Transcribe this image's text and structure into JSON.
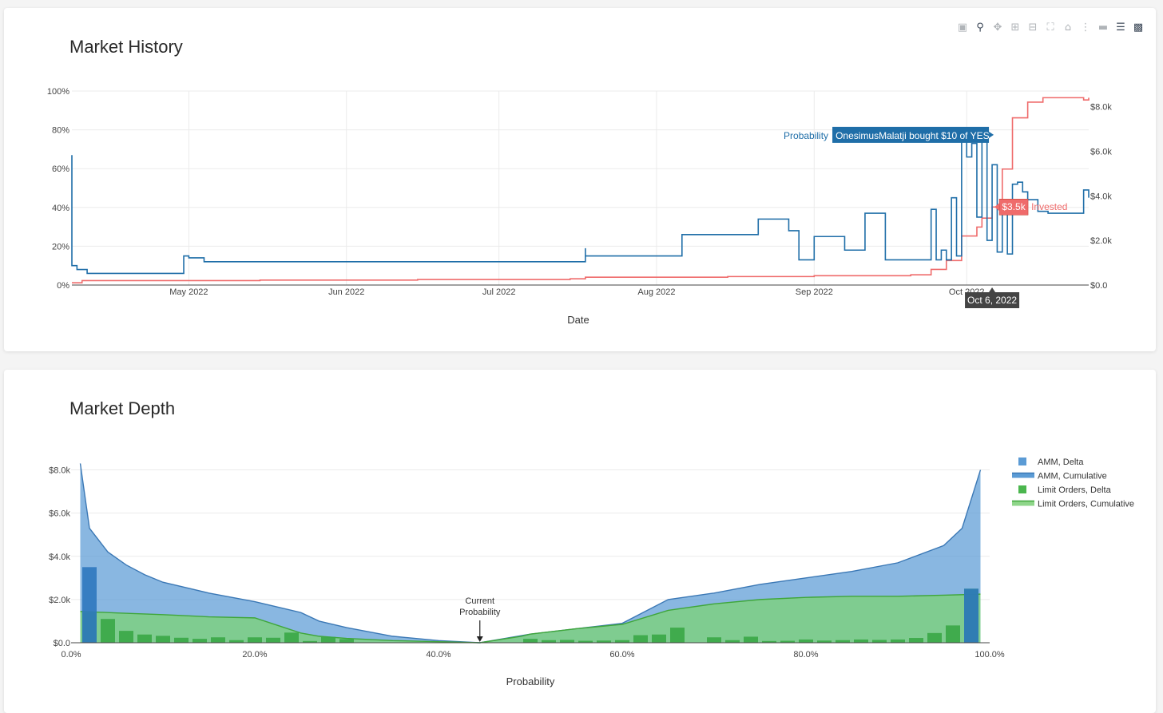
{
  "toolbar": {
    "icons": [
      "camera-icon",
      "zoom-icon",
      "pan-icon",
      "zoom-in-icon",
      "zoom-out-icon",
      "autoscale-icon",
      "reset-axes-icon",
      "spike-lines-icon",
      "hover-closest-icon",
      "hover-compare-icon",
      "plotly-logo-icon"
    ]
  },
  "history": {
    "title": "Market History",
    "xlabel": "Date",
    "tooltip_probability_label": "Probability",
    "tooltip_probability_text": "OnesimusMalatji bought $10 of YES",
    "tooltip_invested_value": "$3.5k",
    "tooltip_invested_label": "Invested",
    "tooltip_date": "Oct 6, 2022",
    "colors": {
      "probability": "#1f6ea8",
      "invested": "#ef6b6b"
    }
  },
  "depth": {
    "title": "Market Depth",
    "xlabel": "Probability",
    "annotation_line1": "Current",
    "annotation_line2": "Probability",
    "colors": {
      "amm": "#5b9bd5",
      "limit": "#3fb54a"
    }
  },
  "chart_data": [
    {
      "type": "line",
      "title": "Market History",
      "xlabel": "Date",
      "x_ticks": [
        "May 2022",
        "Jun 2022",
        "Jul 2022",
        "Aug 2022",
        "Sep 2022",
        "Oct 2022"
      ],
      "y_ticks_left": [
        "0%",
        "20%",
        "40%",
        "60%",
        "80%",
        "100%"
      ],
      "y_ticks_right": [
        "$0.0",
        "$2.0k",
        "$4.0k",
        "$6.0k",
        "$8.0k"
      ],
      "ylim_left": [
        0,
        100
      ],
      "ylim_right": [
        0,
        8700
      ],
      "series": [
        {
          "name": "Probability",
          "axis": "left",
          "x": [
            "2022-04-08",
            "2022-04-08",
            "2022-04-09",
            "2022-04-11",
            "2022-04-30",
            "2022-04-30",
            "2022-05-01",
            "2022-05-04",
            "2022-05-06",
            "2022-07-15",
            "2022-07-18",
            "2022-07-18",
            "2022-07-18",
            "2022-08-06",
            "2022-08-06",
            "2022-08-21",
            "2022-08-21",
            "2022-08-27",
            "2022-08-27",
            "2022-08-29",
            "2022-08-29",
            "2022-09-01",
            "2022-09-01",
            "2022-09-05",
            "2022-09-07",
            "2022-09-07",
            "2022-09-11",
            "2022-09-15",
            "2022-09-15",
            "2022-09-24",
            "2022-09-24",
            "2022-09-25",
            "2022-09-25",
            "2022-09-26",
            "2022-09-27",
            "2022-09-28",
            "2022-09-29",
            "2022-09-30",
            "2022-10-01",
            "2022-10-02",
            "2022-10-03",
            "2022-10-04",
            "2022-10-05",
            "2022-10-06",
            "2022-10-07",
            "2022-10-08",
            "2022-10-09",
            "2022-10-10",
            "2022-10-11",
            "2022-10-12",
            "2022-10-13",
            "2022-10-15",
            "2022-10-17",
            "2022-10-17",
            "2022-10-23",
            "2022-10-24",
            "2022-10-24",
            "2022-10-25"
          ],
          "y": [
            67,
            10,
            8,
            6,
            6,
            15,
            14,
            12,
            12,
            12,
            15,
            19,
            15,
            15,
            26,
            26,
            34,
            34,
            28,
            28,
            13,
            13,
            25,
            25,
            18,
            18,
            37,
            37,
            13,
            13,
            39,
            16,
            13,
            18,
            13,
            45,
            15,
            78,
            66,
            73,
            35,
            77,
            23,
            62,
            17,
            40,
            16,
            52,
            53,
            48,
            44,
            38,
            38,
            37,
            37,
            40,
            49,
            45
          ]
        },
        {
          "name": "Invested",
          "axis": "right",
          "x": [
            "2022-04-08",
            "2022-04-10",
            "2022-05-15",
            "2022-06-15",
            "2022-07-15",
            "2022-07-18",
            "2022-08-15",
            "2022-09-01",
            "2022-09-20",
            "2022-09-24",
            "2022-09-27",
            "2022-09-30",
            "2022-10-03",
            "2022-10-04",
            "2022-10-06",
            "2022-10-08",
            "2022-10-10",
            "2022-10-13",
            "2022-10-16",
            "2022-10-20",
            "2022-10-24",
            "2022-10-25"
          ],
          "y": [
            100,
            200,
            220,
            250,
            280,
            350,
            380,
            420,
            460,
            700,
            1100,
            2200,
            2600,
            3000,
            3500,
            5200,
            7500,
            8200,
            8400,
            8400,
            8300,
            8400
          ]
        }
      ]
    },
    {
      "type": "area",
      "title": "Market Depth",
      "xlabel": "Probability",
      "x_ticks": [
        "0.0%",
        "20.0%",
        "40.0%",
        "60.0%",
        "80.0%",
        "100.0%"
      ],
      "y_ticks": [
        "$0.0",
        "$2.0k",
        "$4.0k",
        "$6.0k",
        "$8.0k"
      ],
      "xlim": [
        0,
        100
      ],
      "ylim": [
        0,
        8500
      ],
      "legend_placement": "top-right",
      "legend": [
        "AMM, Delta",
        "AMM, Cumulative",
        "Limit Orders, Delta",
        "Limit Orders, Cumulative"
      ],
      "current_probability": 44.5,
      "amm_cumulative": {
        "x": [
          1,
          2,
          4,
          6,
          8,
          10,
          13,
          15,
          20,
          25,
          27,
          30,
          35,
          40,
          44.5,
          50,
          55,
          60,
          65,
          70,
          75,
          80,
          85,
          90,
          95,
          97,
          99
        ],
        "y": [
          8300,
          5300,
          4200,
          3600,
          3150,
          2800,
          2500,
          2300,
          1900,
          1400,
          1000,
          700,
          300,
          100,
          0,
          400,
          650,
          900,
          2000,
          2300,
          2700,
          3000,
          3300,
          3700,
          4500,
          5300,
          8000
        ]
      },
      "limit_cumulative": {
        "x": [
          1,
          5,
          10,
          15,
          20,
          25,
          27,
          30,
          35,
          40,
          44.5,
          49,
          50,
          55,
          60,
          65,
          70,
          75,
          80,
          85,
          90,
          95,
          99
        ],
        "y": [
          1450,
          1380,
          1300,
          1200,
          1150,
          450,
          300,
          200,
          100,
          50,
          0,
          300,
          400,
          650,
          850,
          1500,
          1800,
          2000,
          2100,
          2150,
          2150,
          2200,
          2250
        ]
      },
      "amm_delta": {
        "x": [
          2,
          98
        ],
        "y": [
          3500,
          2500
        ]
      },
      "limit_delta": {
        "x": [
          2,
          4,
          6,
          8,
          10,
          12,
          14,
          16,
          18,
          20,
          22,
          24,
          26,
          28,
          30,
          50,
          52,
          54,
          56,
          58,
          60,
          62,
          64,
          66,
          70,
          72,
          74,
          76,
          78,
          80,
          82,
          84,
          86,
          88,
          90,
          92,
          94,
          96,
          98
        ],
        "y": [
          1400,
          1100,
          550,
          380,
          320,
          230,
          180,
          250,
          120,
          250,
          230,
          470,
          80,
          270,
          170,
          180,
          120,
          130,
          90,
          100,
          120,
          350,
          380,
          700,
          250,
          120,
          280,
          80,
          90,
          150,
          100,
          120,
          150,
          130,
          150,
          220,
          450,
          800,
          2500
        ]
      }
    }
  ]
}
